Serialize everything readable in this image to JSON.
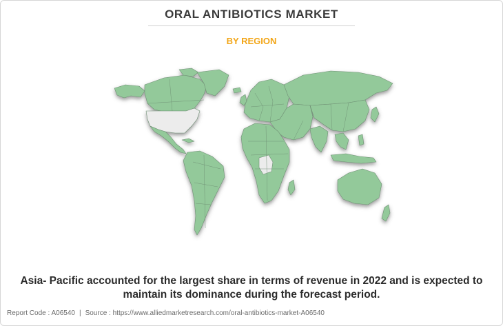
{
  "header": {
    "title": "ORAL ANTIBIOTICS MARKET",
    "subtitle": "BY REGION"
  },
  "map": {
    "colors": {
      "land": "#93c99a",
      "highlight": "#ececec",
      "border": "#6f8f74",
      "shadow": "#4a4a4a"
    }
  },
  "caption": {
    "line1": "Asia- Pacific accounted for the largest share in terms of revenue in 2022 and is expected to",
    "line2": "maintain its dominance during the forecast period."
  },
  "footer": {
    "report_code": "Report Code : A06540",
    "separator": "|",
    "source": "Source : https://www.alliedmarketresearch.com/oral-antibiotics-market-A06540"
  }
}
